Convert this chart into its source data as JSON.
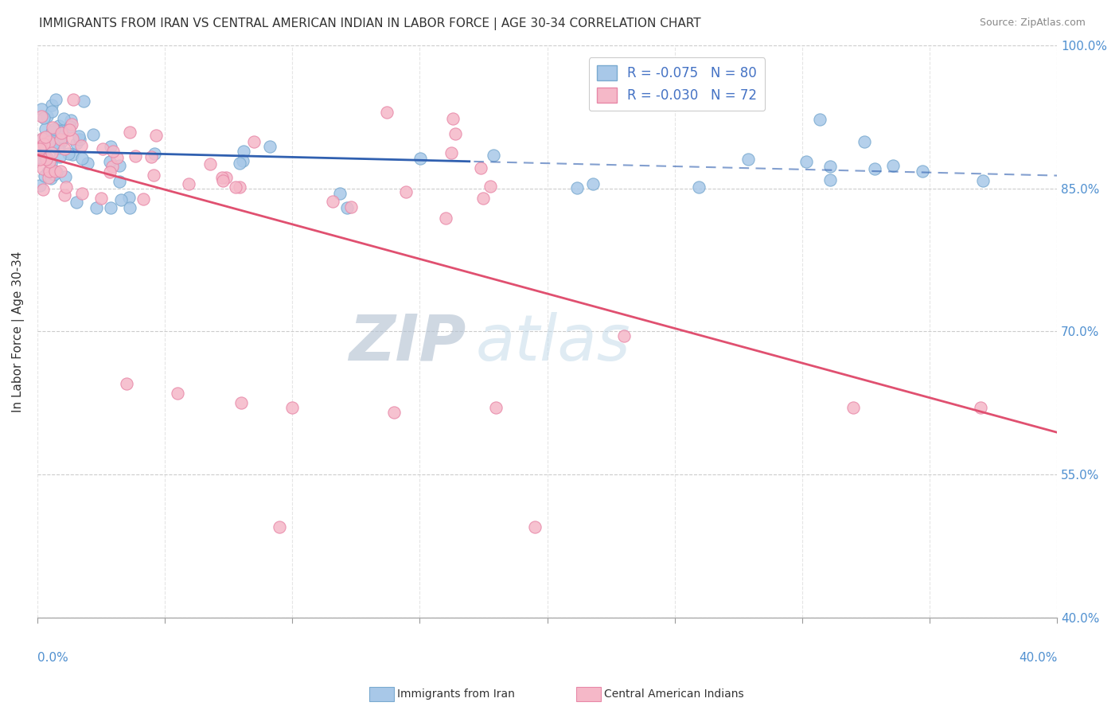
{
  "title": "IMMIGRANTS FROM IRAN VS CENTRAL AMERICAN INDIAN IN LABOR FORCE | AGE 30-34 CORRELATION CHART",
  "source": "Source: ZipAtlas.com",
  "ylabel_label": "In Labor Force | Age 30-34",
  "xmin": 0.0,
  "xmax": 0.4,
  "ymin": 0.4,
  "ymax": 1.0,
  "series1_label": "Immigrants from Iran",
  "series2_label": "Central American Indians",
  "series1_color": "#a8c8e8",
  "series2_color": "#f5b8c8",
  "series1_edge": "#7aaad0",
  "series2_edge": "#e888a8",
  "line1_color": "#3060b0",
  "line2_color": "#e05070",
  "legend_R1": "R = -0.075",
  "legend_N1": "N = 80",
  "legend_R2": "R = -0.030",
  "legend_N2": "N = 72",
  "watermark": "ZIPatlas",
  "watermark_color_zip": "#b0c8e0",
  "watermark_color_atlas": "#b8d0e8",
  "seed": 7,
  "yticks": [
    0.4,
    0.55,
    0.7,
    0.85,
    1.0
  ],
  "ytick_labels": [
    "40.0%",
    "55.0%",
    "70.0%",
    "85.0%",
    "100.0%"
  ]
}
